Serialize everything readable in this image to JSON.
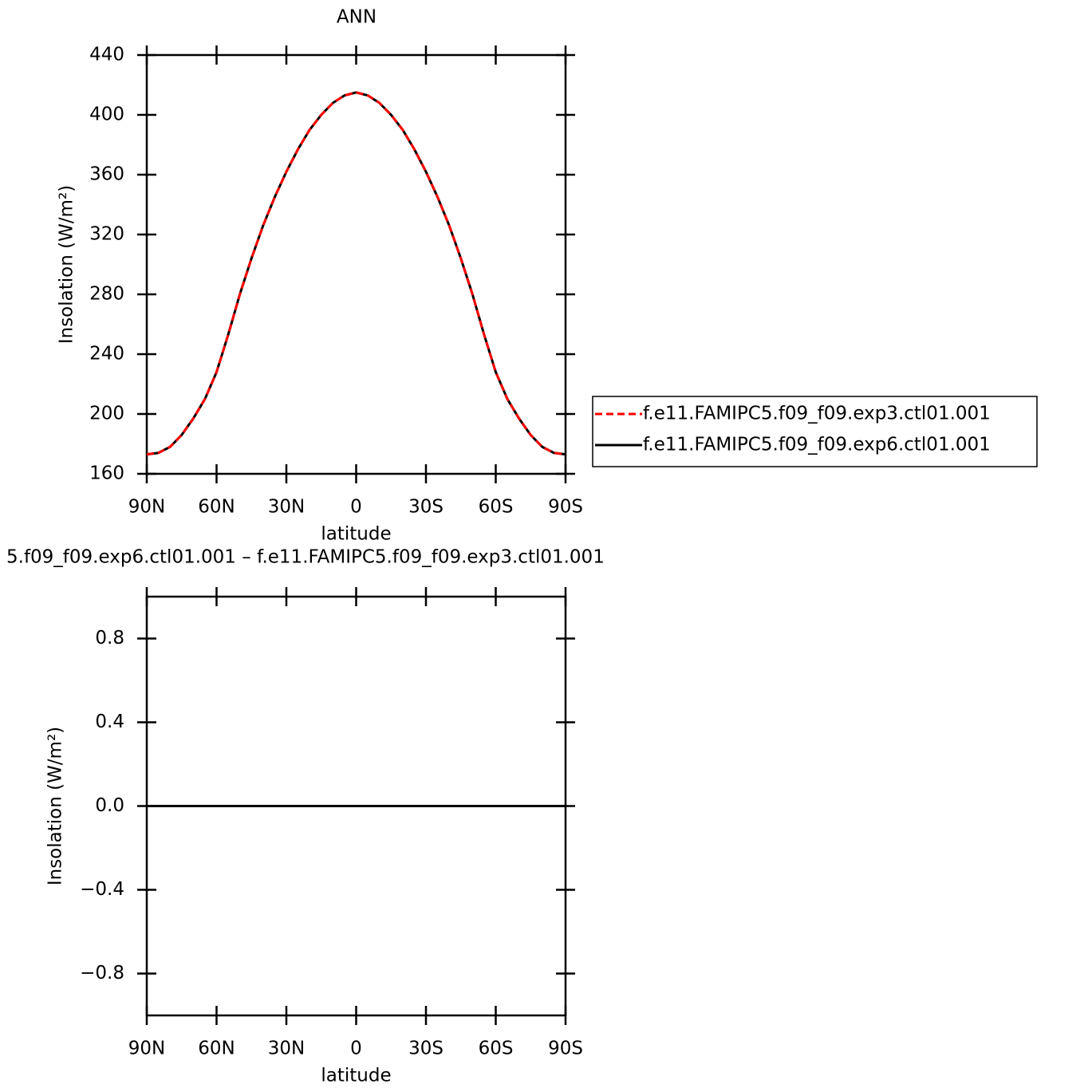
{
  "chart_data": [
    {
      "type": "line",
      "title": "ANN",
      "xlabel": "latitude",
      "ylabel": "Insolation (W/m²)",
      "x": [
        90,
        85,
        80,
        75,
        70,
        65,
        60,
        55,
        50,
        45,
        40,
        35,
        30,
        25,
        20,
        15,
        10,
        5,
        0,
        -5,
        -10,
        -15,
        -20,
        -25,
        -30,
        -35,
        -40,
        -45,
        -50,
        -55,
        -60,
        -65,
        -70,
        -75,
        -80,
        -85,
        -90
      ],
      "series": [
        {
          "name": "f.e11.FAMIPC5.f09_f09.exp3.ctl01.001",
          "color": "#ff0000",
          "dash": "dashed",
          "values": [
            173,
            174,
            178,
            186,
            197,
            210,
            228,
            253,
            280,
            304,
            326,
            345,
            362,
            377,
            390,
            400,
            408,
            413,
            415,
            413,
            408,
            400,
            390,
            377,
            362,
            345,
            326,
            304,
            280,
            253,
            228,
            210,
            197,
            186,
            178,
            174,
            173
          ]
        },
        {
          "name": "f.e11.FAMIPC5.f09_f09.exp6.ctl01.001",
          "color": "#000000",
          "dash": "solid",
          "values": [
            173,
            174,
            178,
            186,
            197,
            210,
            228,
            253,
            280,
            304,
            326,
            345,
            362,
            377,
            390,
            400,
            408,
            413,
            415,
            413,
            408,
            400,
            390,
            377,
            362,
            345,
            326,
            304,
            280,
            253,
            228,
            210,
            197,
            186,
            178,
            174,
            173
          ]
        }
      ],
      "xlim": [
        90,
        -90
      ],
      "xticks": [
        {
          "value": 90,
          "label": "90N"
        },
        {
          "value": 60,
          "label": "60N"
        },
        {
          "value": 30,
          "label": "30N"
        },
        0,
        {
          "value": -30,
          "label": "30S"
        },
        {
          "value": -60,
          "label": "60S"
        },
        {
          "value": -90,
          "label": "90S"
        }
      ],
      "ylim": [
        160,
        440
      ],
      "yticks": [
        160,
        200,
        240,
        280,
        320,
        360,
        400,
        440
      ],
      "legend": "right"
    },
    {
      "type": "line",
      "title": "5.f09_f09.exp6.ctl01.001  –  f.e11.FAMIPC5.f09_f09.exp3.ctl01.001",
      "xlabel": "latitude",
      "ylabel": "Insolation (W/m²)",
      "x": [
        90,
        80,
        70,
        60,
        50,
        40,
        30,
        20,
        10,
        0,
        -10,
        -20,
        -30,
        -40,
        -50,
        -60,
        -70,
        -80,
        -90
      ],
      "series": [
        {
          "color": "#000000",
          "dash": "solid",
          "values": [
            0,
            0,
            0,
            0,
            0,
            0,
            0,
            0,
            0,
            0,
            0,
            0,
            0,
            0,
            0,
            0,
            0,
            0,
            0
          ]
        }
      ],
      "xlim": [
        90,
        -90
      ],
      "xticks": [
        {
          "value": 90,
          "label": "90N"
        },
        {
          "value": 60,
          "label": "60N"
        },
        {
          "value": 30,
          "label": "30N"
        },
        0,
        {
          "value": -30,
          "label": "30S"
        },
        {
          "value": -60,
          "label": "60S"
        },
        {
          "value": -90,
          "label": "90S"
        }
      ],
      "ylim": [
        -1,
        1
      ],
      "yticks": [
        {
          "value": -0.8,
          "label": "−0.8"
        },
        {
          "value": -0.4,
          "label": "−0.4"
        },
        {
          "value": 0,
          "label": "0.0"
        },
        0.4,
        0.8
      ]
    }
  ]
}
